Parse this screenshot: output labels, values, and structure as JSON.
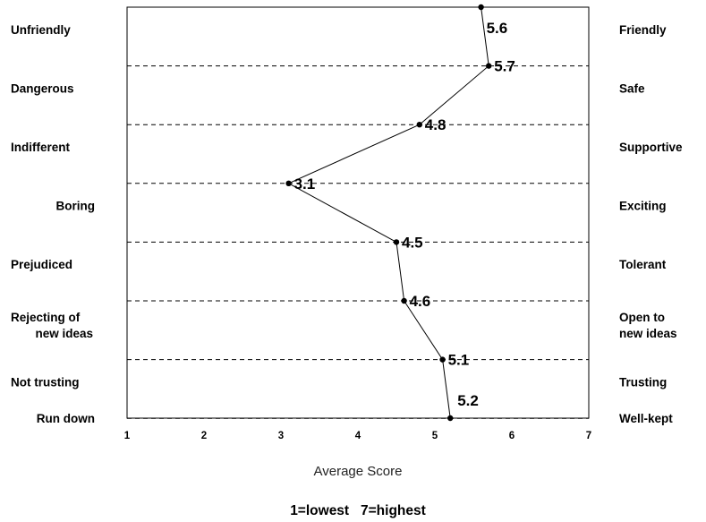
{
  "chart_data": {
    "type": "line",
    "orientation": "horizontal",
    "items": [
      {
        "left": "Unfriendly",
        "left2": "",
        "right": "Friendly",
        "right2": "",
        "value": 5.6,
        "label": "5.6"
      },
      {
        "left": "Dangerous",
        "left2": "",
        "right": "Safe",
        "right2": "",
        "value": 5.7,
        "label": "5.7"
      },
      {
        "left": "Indifferent",
        "left2": "",
        "right": "Supportive",
        "right2": "",
        "value": 4.8,
        "label": "4.8"
      },
      {
        "left": "Boring",
        "left2": "",
        "right": "Exciting",
        "right2": "",
        "value": 3.1,
        "label": "3.1"
      },
      {
        "left": "Prejudiced",
        "left2": "",
        "right": "Tolerant",
        "right2": "",
        "value": 4.5,
        "label": "4.5"
      },
      {
        "left": "Rejecting of",
        "left2": "new ideas",
        "right": "Open to",
        "right2": "new ideas",
        "value": 4.6,
        "label": "4.6"
      },
      {
        "left": "Not trusting",
        "left2": "",
        "right": "Trusting",
        "right2": "",
        "value": 5.1,
        "label": "5.1"
      },
      {
        "left": "Run down",
        "left2": "",
        "right": "Well-kept",
        "right2": "",
        "value": 5.2,
        "label": "5.2"
      }
    ],
    "xticks": [
      "1",
      "2",
      "3",
      "4",
      "5",
      "6",
      "7"
    ],
    "xlim": [
      1,
      7
    ],
    "xlabel": "Average Score",
    "note": "1=lowest   7=highest",
    "grid": "dashed horizontal",
    "line_color": "#000000"
  }
}
